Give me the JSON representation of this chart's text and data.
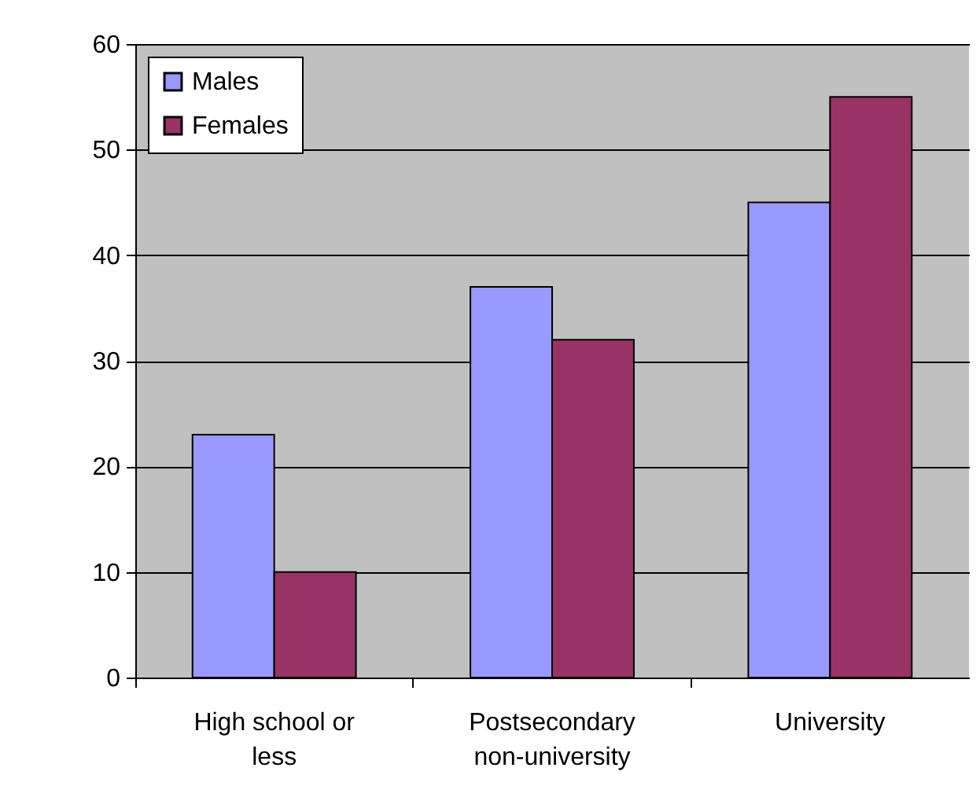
{
  "chart_data": {
    "type": "bar",
    "categories": [
      "High school or less",
      "Postsecondary non-university",
      "University"
    ],
    "series": [
      {
        "name": "Males",
        "color": "#9999ff",
        "values": [
          23,
          37,
          45
        ]
      },
      {
        "name": "Females",
        "color": "#993366",
        "values": [
          10,
          32,
          55
        ]
      }
    ],
    "ylim": [
      0,
      60
    ],
    "yticks": [
      0,
      10,
      20,
      30,
      40,
      50,
      60
    ],
    "grid": "y",
    "legend": "top left"
  }
}
